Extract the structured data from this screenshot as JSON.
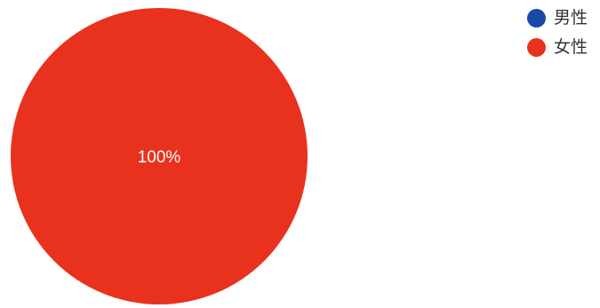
{
  "chart_data": {
    "type": "pie",
    "categories": [
      "男性",
      "女性"
    ],
    "values": [
      0,
      100
    ],
    "colors": [
      "#1a47a8",
      "#e8321e"
    ],
    "data_labels": [
      "",
      "100%"
    ],
    "legend": "top-right",
    "title": ""
  }
}
